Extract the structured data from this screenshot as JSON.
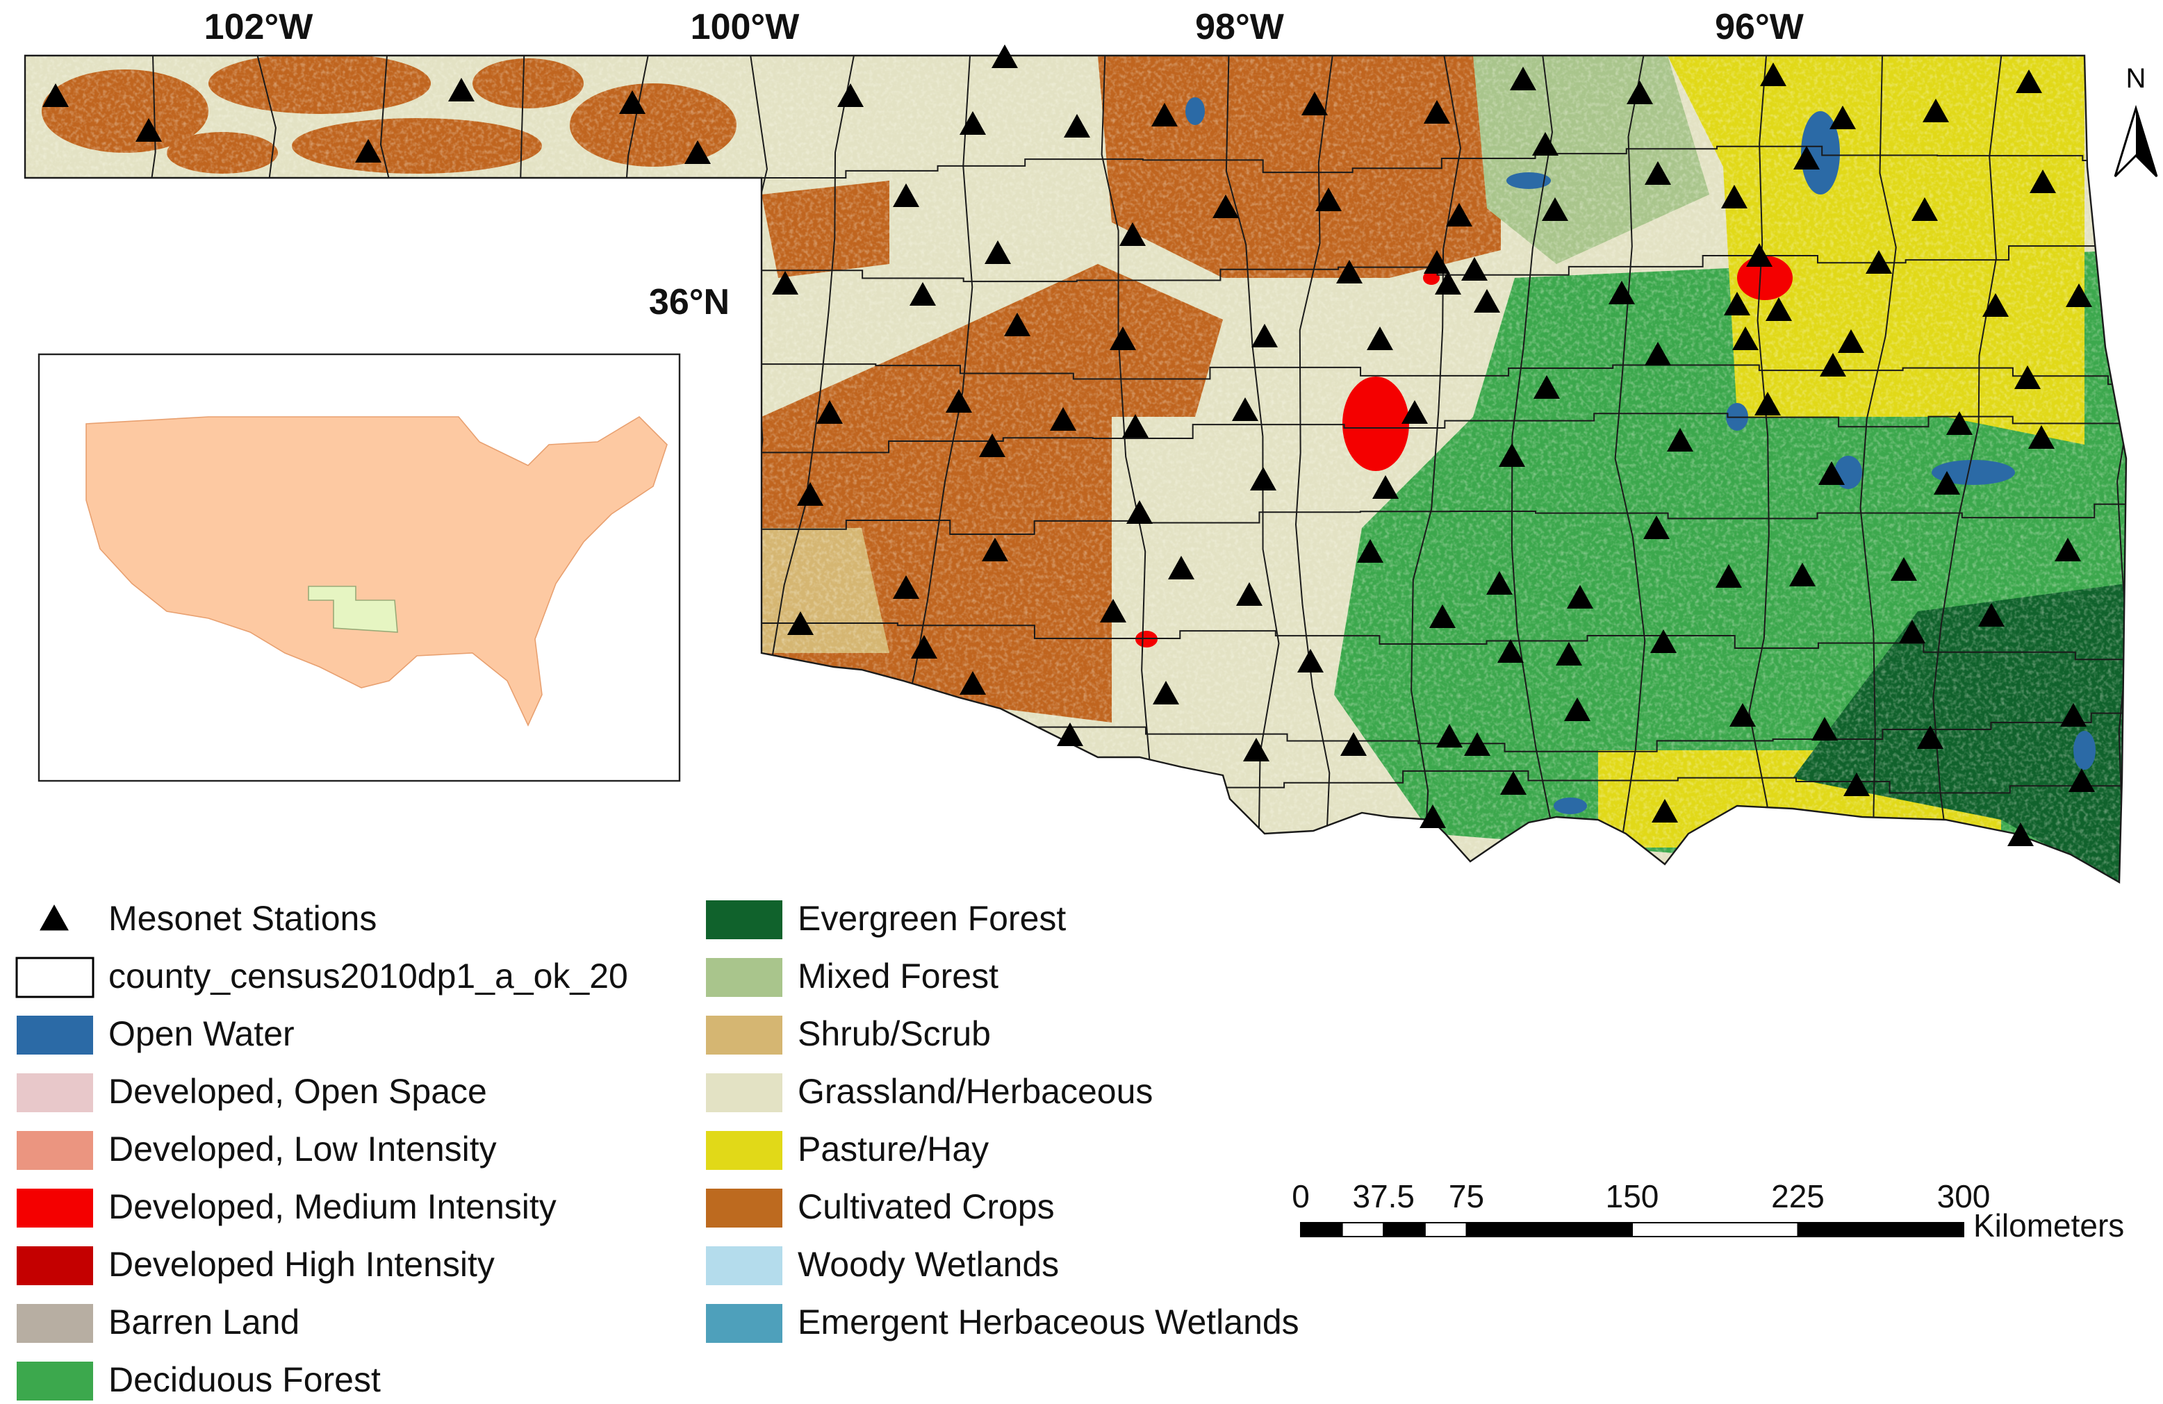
{
  "map": {
    "graticule_labels": {
      "lon": [
        "102°W",
        "100°W",
        "98°W",
        "96°W"
      ],
      "lat": [
        "36°N"
      ]
    },
    "north_arrow": "N",
    "legend": [
      {
        "label": "Mesonet Stations",
        "color": "#000000"
      },
      {
        "label": "county_census2010dp1_a_ok_20",
        "color": "#ffffff"
      },
      {
        "label": "Open Water",
        "color": "#2b6aa6"
      },
      {
        "label": "Developed, Open Space",
        "color": "#e8c8ca"
      },
      {
        "label": "Developed, Low Intensity",
        "color": "#eb9580"
      },
      {
        "label": "Developed, Medium Intensity",
        "color": "#f40000"
      },
      {
        "label": "Developed High Intensity",
        "color": "#c40000"
      },
      {
        "label": "Barren Land",
        "color": "#b7aea2"
      },
      {
        "label": "Deciduous Forest",
        "color": "#3ca84d"
      },
      {
        "label": "Evergreen Forest",
        "color": "#10622c"
      },
      {
        "label": "Mixed Forest",
        "color": "#a9c58c"
      },
      {
        "label": "Shrub/Scrub",
        "color": "#d5b672"
      },
      {
        "label": "Grassland/Herbaceous",
        "color": "#e3e2c4"
      },
      {
        "label": "Pasture/Hay",
        "color": "#e1d918"
      },
      {
        "label": "Cultivated Crops",
        "color": "#bd6a1f"
      },
      {
        "label": "Woody Wetlands",
        "color": "#b4dcec"
      },
      {
        "label": "Emergent Herbaceous Wetlands",
        "color": "#4ea0bb"
      }
    ],
    "scale_bar": {
      "ticks": [
        0,
        37.5,
        75,
        150,
        225,
        300
      ],
      "unit": "Kilometers"
    }
  }
}
